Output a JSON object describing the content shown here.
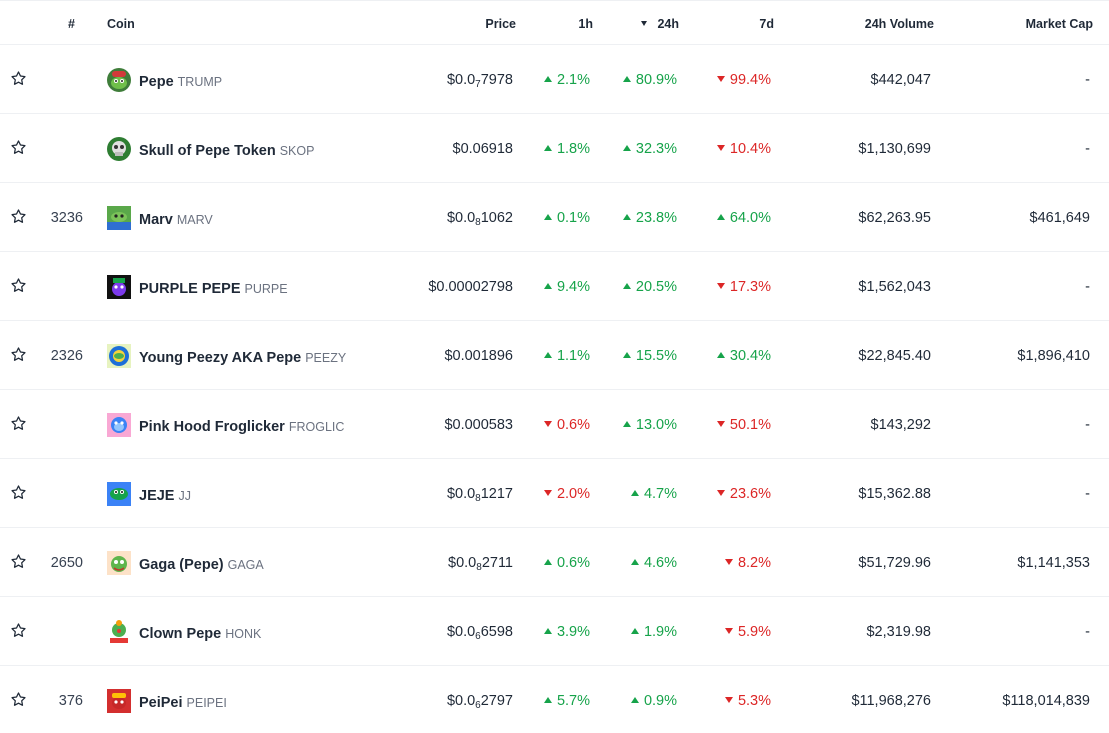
{
  "columns": {
    "rank": "#",
    "coin": "Coin",
    "price": "Price",
    "h1": "1h",
    "h24": "24h",
    "d7": "7d",
    "volume": "24h Volume",
    "market_cap": "Market Cap"
  },
  "sort": {
    "column": "24h",
    "direction": "descending"
  },
  "colors": {
    "up": "#16a34a",
    "down": "#dc2626"
  },
  "rows": [
    {
      "rank": "",
      "name": "Pepe",
      "symbol": "TRUMP",
      "logo": "pepe-trump-logo",
      "price_prefix": "$0.0",
      "price_sub": "7",
      "price_rest": "7978",
      "h1": "2.1%",
      "h1_dir": "up",
      "h24": "80.9%",
      "h24_dir": "up",
      "d7": "99.4%",
      "d7_dir": "down",
      "volume": "$442,047",
      "market_cap": "-"
    },
    {
      "rank": "",
      "name": "Skull of Pepe Token",
      "symbol": "SKOP",
      "logo": "skull-pepe-logo",
      "price_prefix": "$0.06918",
      "price_sub": "",
      "price_rest": "",
      "h1": "1.8%",
      "h1_dir": "up",
      "h24": "32.3%",
      "h24_dir": "up",
      "d7": "10.4%",
      "d7_dir": "down",
      "volume": "$1,130,699",
      "market_cap": "-"
    },
    {
      "rank": "3236",
      "name": "Marv",
      "symbol": "MARV",
      "logo": "marv-logo",
      "price_prefix": "$0.0",
      "price_sub": "8",
      "price_rest": "1062",
      "h1": "0.1%",
      "h1_dir": "up",
      "h24": "23.8%",
      "h24_dir": "up",
      "d7": "64.0%",
      "d7_dir": "up",
      "volume": "$62,263.95",
      "market_cap": "$461,649"
    },
    {
      "rank": "",
      "name": "PURPLE PEPE",
      "symbol": "PURPE",
      "logo": "purple-pepe-logo",
      "price_prefix": "$0.00002798",
      "price_sub": "",
      "price_rest": "",
      "h1": "9.4%",
      "h1_dir": "up",
      "h24": "20.5%",
      "h24_dir": "up",
      "d7": "17.3%",
      "d7_dir": "down",
      "volume": "$1,562,043",
      "market_cap": "-"
    },
    {
      "rank": "2326",
      "name": "Young Peezy AKA Pepe",
      "symbol": "PEEZY",
      "logo": "peezy-logo",
      "price_prefix": "$0.001896",
      "price_sub": "",
      "price_rest": "",
      "h1": "1.1%",
      "h1_dir": "up",
      "h24": "15.5%",
      "h24_dir": "up",
      "d7": "30.4%",
      "d7_dir": "up",
      "volume": "$22,845.40",
      "market_cap": "$1,896,410"
    },
    {
      "rank": "",
      "name": "Pink Hood Froglicker",
      "symbol": "FROGLIC",
      "logo": "froglic-logo",
      "price_prefix": "$0.000583",
      "price_sub": "",
      "price_rest": "",
      "h1": "0.6%",
      "h1_dir": "down",
      "h24": "13.0%",
      "h24_dir": "up",
      "d7": "50.1%",
      "d7_dir": "down",
      "volume": "$143,292",
      "market_cap": "-"
    },
    {
      "rank": "",
      "name": "JEJE",
      "symbol": "JJ",
      "logo": "jeje-logo",
      "price_prefix": "$0.0",
      "price_sub": "8",
      "price_rest": "1217",
      "h1": "2.0%",
      "h1_dir": "down",
      "h24": "4.7%",
      "h24_dir": "up",
      "d7": "23.6%",
      "d7_dir": "down",
      "volume": "$15,362.88",
      "market_cap": "-"
    },
    {
      "rank": "2650",
      "name": "Gaga (Pepe)",
      "symbol": "GAGA",
      "logo": "gaga-logo",
      "price_prefix": "$0.0",
      "price_sub": "8",
      "price_rest": "2711",
      "h1": "0.6%",
      "h1_dir": "up",
      "h24": "4.6%",
      "h24_dir": "up",
      "d7": "8.2%",
      "d7_dir": "down",
      "volume": "$51,729.96",
      "market_cap": "$1,141,353"
    },
    {
      "rank": "",
      "name": "Clown Pepe",
      "symbol": "HONK",
      "logo": "clown-pepe-logo",
      "price_prefix": "$0.0",
      "price_sub": "6",
      "price_rest": "6598",
      "h1": "3.9%",
      "h1_dir": "up",
      "h24": "1.9%",
      "h24_dir": "up",
      "d7": "5.9%",
      "d7_dir": "down",
      "volume": "$2,319.98",
      "market_cap": "-"
    },
    {
      "rank": "376",
      "name": "PeiPei",
      "symbol": "PEIPEI",
      "logo": "peipei-logo",
      "price_prefix": "$0.0",
      "price_sub": "6",
      "price_rest": "2797",
      "h1": "5.7%",
      "h1_dir": "up",
      "h24": "0.9%",
      "h24_dir": "up",
      "d7": "5.3%",
      "d7_dir": "down",
      "volume": "$11,968,276",
      "market_cap": "$118,014,839"
    }
  ]
}
